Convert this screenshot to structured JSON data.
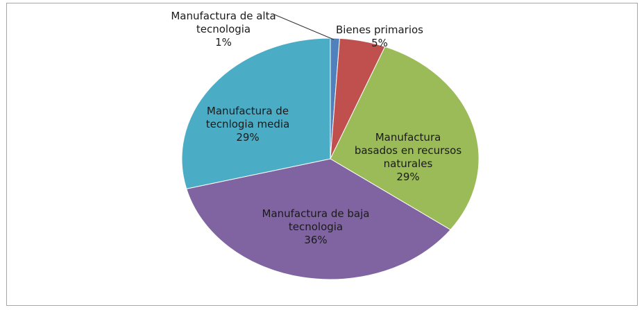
{
  "chart_data": {
    "type": "pie",
    "categories": [
      "Manufactura de alta tecnologia",
      "Bienes primarios",
      "Manufactura basados en recursos naturales",
      "Manufactura de baja tecnologia",
      "Manufactura de tecnlogia media"
    ],
    "values": [
      1,
      5,
      29,
      36,
      29
    ],
    "value_labels": [
      "1%",
      "5%",
      "29%",
      "36%",
      "29%"
    ],
    "colors": [
      "#4f81bd",
      "#c0504d",
      "#9bbb59",
      "#8064a2",
      "#4bacc6"
    ]
  }
}
